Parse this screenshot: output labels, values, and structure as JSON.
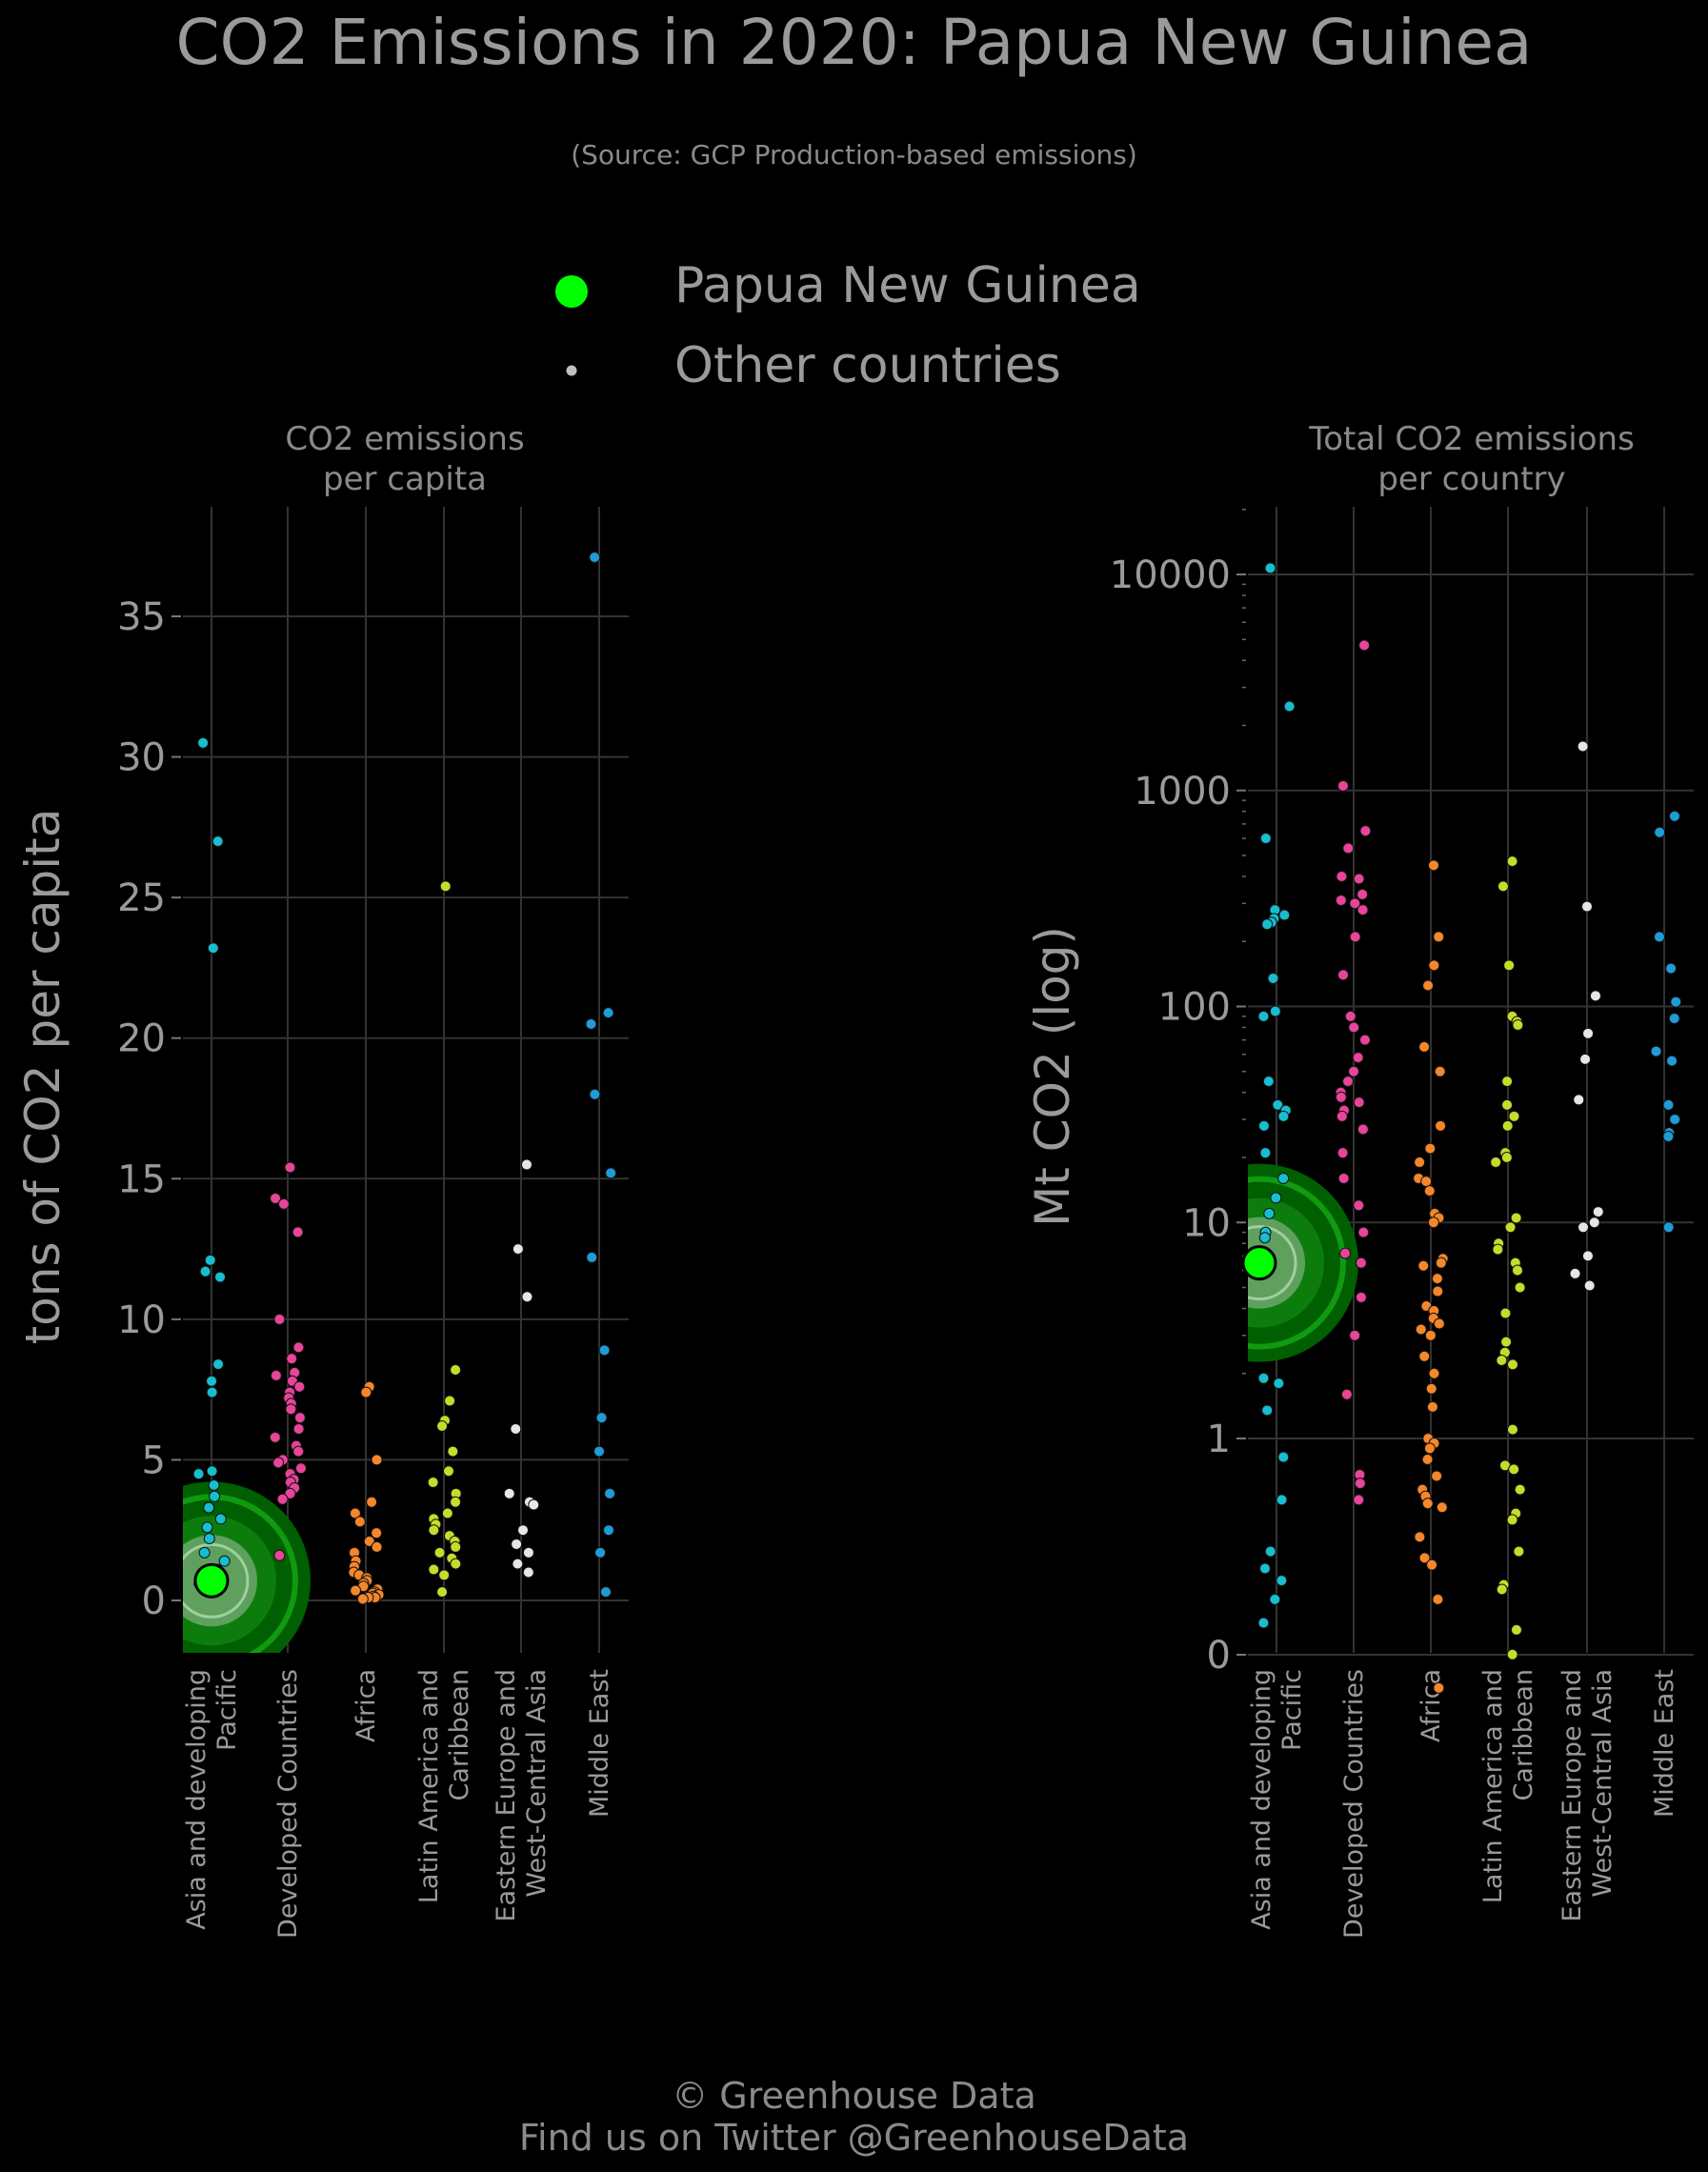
{
  "title": "CO2 Emissions in 2020: Papua New Guinea",
  "subtitle": "(Source: GCP Production-based emissions)",
  "legend": {
    "highlight_label": "Papua New Guinea",
    "other_label": "Other countries",
    "highlight_color": "#00ff00",
    "other_color": "#bfbfbf"
  },
  "footer": {
    "line1": "© Greenhouse Data",
    "line2": "Find us on Twitter @GreenhouseData"
  },
  "colors": {
    "Asia and developing Pacific": "#17becf",
    "Developed Countries": "#e7449a",
    "Africa": "#f5872a",
    "Latin America and Caribbean": "#c6dc2a",
    "Eastern Europe and West-Central Asia": "#e6e6e6",
    "Middle East": "#1f9bd6"
  },
  "chart_data": [
    {
      "type": "scatter",
      "title": "CO2 emissions per capita",
      "title_lines": [
        "CO2 emissions",
        "per capita"
      ],
      "ylabel": "tons of CO2 per capita",
      "ylim": [
        -1.8,
        38.8
      ],
      "yticks": [
        0,
        5,
        10,
        15,
        20,
        25,
        30,
        35
      ],
      "ytick_labels": [
        "0",
        "5",
        "10",
        "15",
        "20",
        "25",
        "30",
        "35"
      ],
      "grid": true,
      "categories": [
        "Asia and developing Pacific",
        "Developed Countries",
        "Africa",
        "Latin America and Caribbean",
        "Eastern Europe and West-Central Asia",
        "Middle East"
      ],
      "category_labels": [
        [
          "Asia and developing",
          "Pacific"
        ],
        [
          "Developed Countries"
        ],
        [
          "Africa"
        ],
        [
          "Latin America and",
          "Caribbean"
        ],
        [
          "Eastern Europe and",
          "West-Central Asia"
        ],
        [
          "Middle East"
        ]
      ],
      "highlight": {
        "category": "Asia and developing Pacific",
        "value": 0.7
      },
      "series": [
        {
          "category": "Asia and developing Pacific",
          "values": [
            30.5,
            27.0,
            23.2,
            12.1,
            11.7,
            11.5,
            8.4,
            7.8,
            7.4,
            4.6,
            4.5,
            4.1,
            3.7,
            3.3,
            2.9,
            2.6,
            2.2,
            1.7,
            1.4,
            1.1,
            0.9,
            0.8,
            0.6,
            0.5
          ]
        },
        {
          "category": "Developed Countries",
          "values": [
            15.4,
            14.3,
            14.1,
            13.1,
            10.0,
            9.0,
            8.6,
            8.1,
            8.0,
            7.8,
            7.6,
            7.4,
            7.2,
            7.0,
            6.8,
            6.5,
            6.1,
            5.8,
            5.5,
            5.3,
            5.0,
            4.9,
            4.7,
            4.5,
            4.3,
            4.2,
            4.0,
            3.8,
            3.6,
            1.6
          ]
        },
        {
          "category": "Africa",
          "values": [
            7.6,
            7.4,
            5.0,
            3.5,
            3.1,
            2.8,
            2.4,
            2.1,
            1.9,
            1.7,
            1.4,
            1.2,
            1.0,
            0.9,
            0.8,
            0.7,
            0.6,
            0.5,
            0.4,
            0.35,
            0.3,
            0.25,
            0.2,
            0.15,
            0.1,
            0.1,
            0.05
          ]
        },
        {
          "category": "Latin America and Caribbean",
          "values": [
            25.4,
            8.2,
            7.1,
            6.4,
            6.2,
            5.3,
            4.6,
            4.2,
            3.8,
            3.5,
            3.1,
            2.9,
            2.7,
            2.5,
            2.3,
            2.1,
            1.9,
            1.7,
            1.5,
            1.3,
            1.1,
            0.9,
            0.3
          ]
        },
        {
          "category": "Eastern Europe and West-Central Asia",
          "values": [
            15.5,
            12.5,
            10.8,
            6.1,
            3.8,
            3.5,
            3.4,
            2.5,
            2.0,
            1.7,
            1.3,
            1.0
          ]
        },
        {
          "category": "Middle East",
          "values": [
            37.1,
            20.9,
            20.5,
            18.0,
            15.2,
            12.2,
            8.9,
            6.5,
            5.3,
            3.8,
            2.5,
            1.7,
            0.3
          ]
        }
      ]
    },
    {
      "type": "scatter",
      "title": "Total CO2 emissions per country",
      "title_lines": [
        "Total CO2 emissions",
        "per country"
      ],
      "ylabel": "Mt CO2 (log)",
      "yscale": "log",
      "yticks": [
        0,
        1,
        10,
        100,
        1000,
        10000
      ],
      "ytick_labels": [
        "0",
        "1",
        "10",
        "100",
        "1000",
        "10000"
      ],
      "grid": true,
      "categories": [
        "Asia and developing Pacific",
        "Developed Countries",
        "Africa",
        "Latin America and Caribbean",
        "Eastern Europe and West-Central Asia",
        "Middle East"
      ],
      "category_labels": [
        [
          "Asia and developing",
          "Pacific"
        ],
        [
          "Developed Countries"
        ],
        [
          "Africa"
        ],
        [
          "Latin America and",
          "Caribbean"
        ],
        [
          "Eastern Europe and",
          "West-Central Asia"
        ],
        [
          "Middle East"
        ]
      ],
      "highlight": {
        "category": "Asia and developing Pacific",
        "value": 6.5
      },
      "series": [
        {
          "category": "Asia and developing Pacific",
          "values": [
            10700,
            2450,
            600,
            280,
            265,
            255,
            245,
            240,
            135,
            95,
            90,
            45,
            35,
            33,
            31,
            28,
            21,
            16,
            13,
            11,
            9,
            8.5,
            1.9,
            1.8,
            1.35,
            0.82,
            0.52,
            0.3,
            0.25,
            0.22,
            0.18,
            0.14
          ]
        },
        {
          "category": "Developed Countries",
          "values": [
            4700,
            1050,
            650,
            540,
            400,
            390,
            330,
            310,
            300,
            280,
            210,
            140,
            90,
            80,
            70,
            58,
            50,
            45,
            40,
            38,
            36,
            33,
            31,
            27,
            21,
            16,
            12,
            9,
            7.2,
            6.5,
            4.5,
            3.0,
            1.6,
            0.68,
            0.62,
            0.52
          ]
        },
        {
          "category": "Africa",
          "values": [
            450,
            210,
            155,
            125,
            65,
            50,
            28,
            22,
            19,
            16,
            15.5,
            14,
            11,
            10.5,
            10,
            6.8,
            6.5,
            6.3,
            5.5,
            4.8,
            4.1,
            3.9,
            3.6,
            3.4,
            3.2,
            3.0,
            2.4,
            2.0,
            1.7,
            1.4,
            1.0,
            0.95,
            0.9,
            0.8,
            0.67,
            0.58,
            0.54,
            0.5,
            0.48,
            0.35,
            0.28,
            0.26,
            0.18,
            0.07
          ]
        },
        {
          "category": "Latin America and Caribbean",
          "values": [
            470,
            360,
            155,
            90,
            85,
            82,
            45,
            35,
            31,
            28,
            21,
            20,
            19,
            10.5,
            9.5,
            8,
            7.5,
            6.5,
            6,
            5,
            3.8,
            2.8,
            2.5,
            2.3,
            2.2,
            1.1,
            0.75,
            0.72,
            0.58,
            0.45,
            0.42,
            0.3,
            0.21,
            0.2,
            0.13,
            0.1
          ]
        },
        {
          "category": "Eastern Europe and West-Central Asia",
          "values": [
            1600,
            290,
            112,
            75,
            57,
            37,
            11.2,
            10,
            9.5,
            7,
            5.8,
            5.1
          ]
        },
        {
          "category": "Middle East",
          "values": [
            760,
            640,
            210,
            150,
            105,
            88,
            62,
            56,
            35,
            30,
            26,
            25,
            9.5
          ]
        }
      ]
    }
  ]
}
